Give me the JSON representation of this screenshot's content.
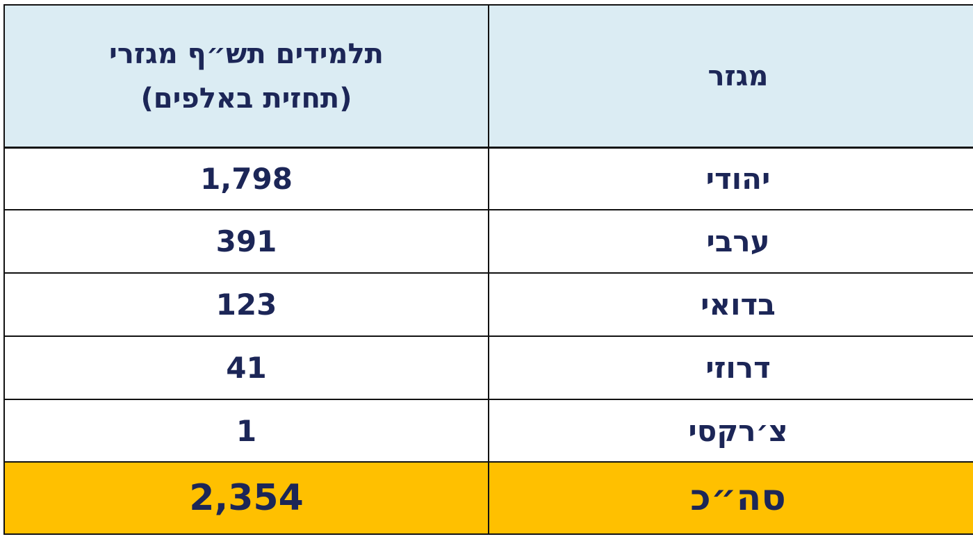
{
  "table": {
    "header": {
      "sector": "מגזר",
      "students": [
        "תלמידים תש״ף מגזרי",
        "(תחזית באלפים)"
      ]
    },
    "rows": [
      [
        "יהודי",
        "1,798"
      ],
      [
        "ערבי",
        "391"
      ],
      [
        "בדואי",
        "123"
      ],
      [
        "דרוזי",
        "41"
      ],
      [
        "צ׳רקסי",
        "1"
      ]
    ],
    "total": [
      "סה״כ",
      "2,354"
    ]
  }
}
